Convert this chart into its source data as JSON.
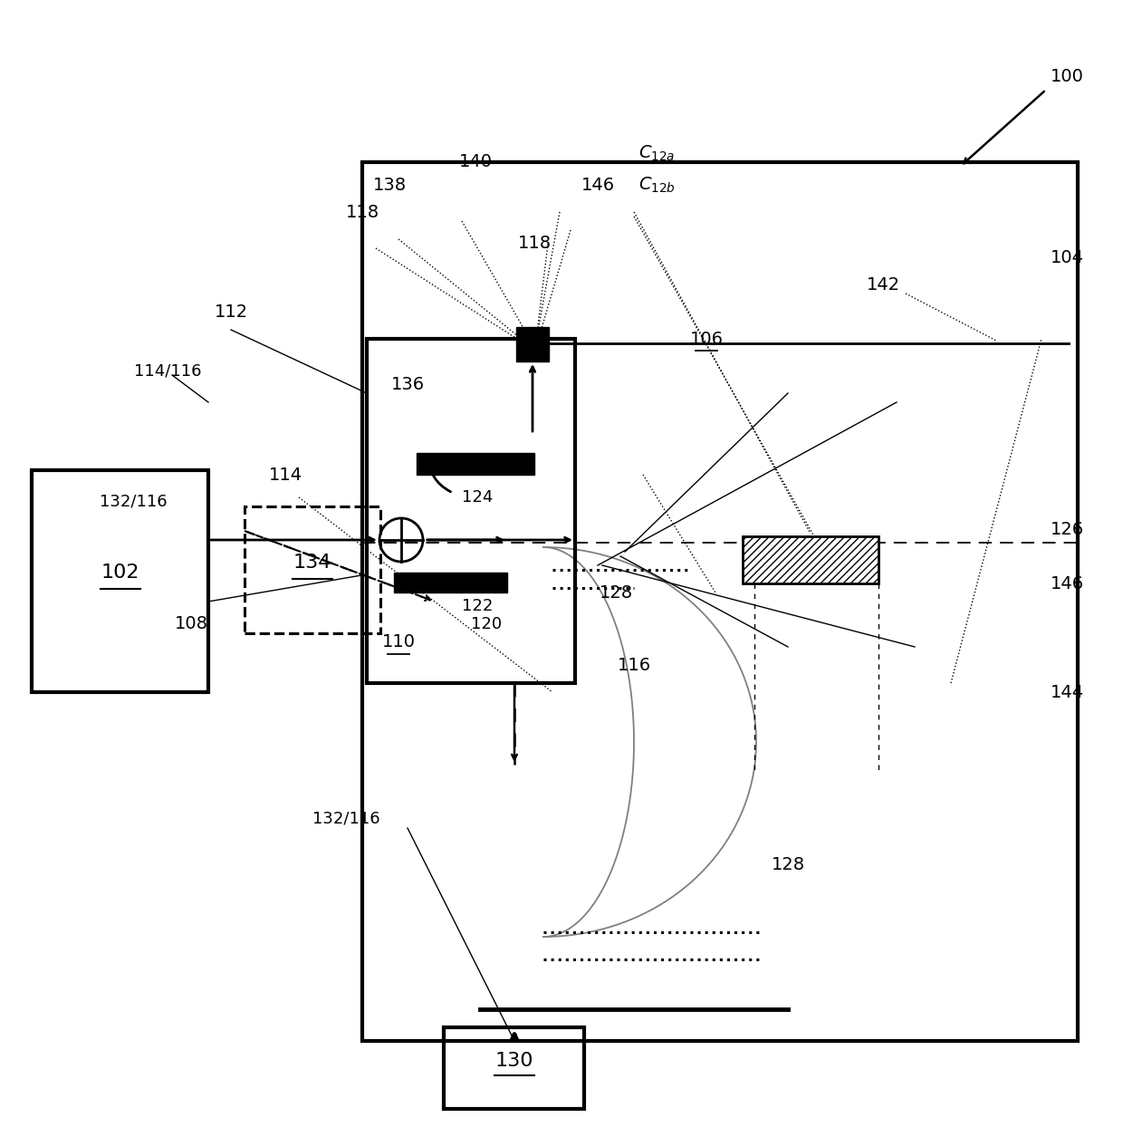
{
  "bg_color": "#ffffff",
  "fig_width": 12.4,
  "fig_height": 12.44,
  "dpi": 100
}
